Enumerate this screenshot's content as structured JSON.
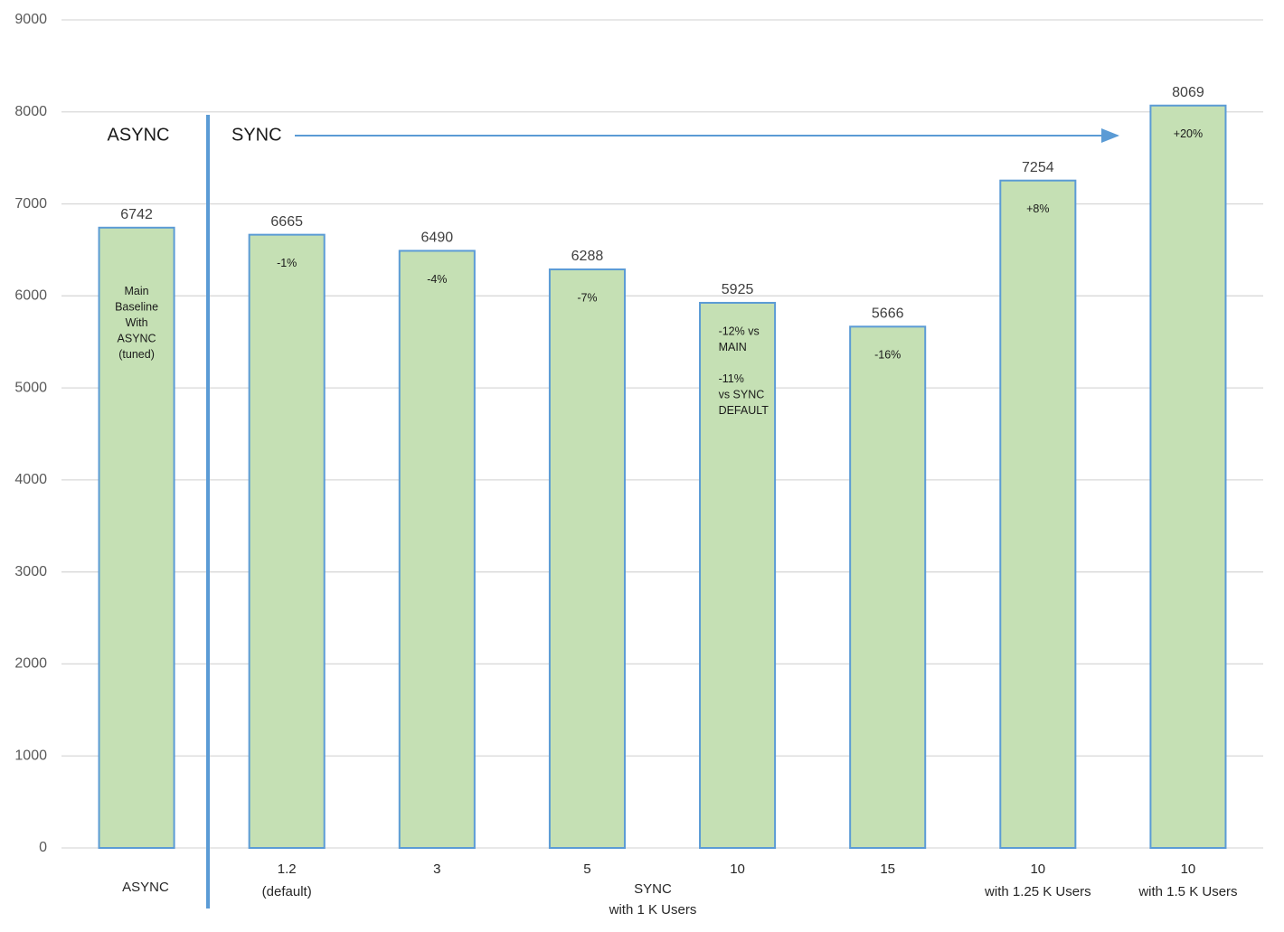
{
  "chart_data": {
    "type": "bar",
    "categories": [
      null,
      [
        "1.2",
        "(default)"
      ],
      [
        "3"
      ],
      [
        "5"
      ],
      [
        "10"
      ],
      [
        "15"
      ],
      [
        "10",
        "with 1.25 K Users"
      ],
      [
        "10",
        "with 1.5 K Users"
      ]
    ],
    "groups": [
      [
        "ASYNC"
      ],
      [
        "SYNC",
        "with 1 K Users"
      ]
    ],
    "values": [
      6742,
      6665,
      6490,
      6288,
      5925,
      5666,
      7254,
      8069
    ],
    "bar_notes": [
      [
        [
          "Main",
          "Baseline",
          "With",
          "ASYNC",
          "(tuned)"
        ]
      ],
      [
        [
          "-1%"
        ]
      ],
      [
        [
          "-4%"
        ]
      ],
      [
        [
          "-7%"
        ]
      ],
      [
        [
          "-12% vs",
          "MAIN"
        ],
        [
          "-11%",
          "vs SYNC",
          "DEFAULT"
        ]
      ],
      [
        [
          "-16%"
        ]
      ],
      [
        [
          "+8%"
        ]
      ],
      [
        [
          "+20%"
        ]
      ]
    ],
    "annotations": [
      "ASYNC",
      "SYNC"
    ],
    "color": "#c5e0b4",
    "edge_color": "#5b9bd5",
    "ylim": [
      0,
      9000
    ],
    "yticks": [
      0,
      1000,
      2000,
      3000,
      4000,
      5000,
      6000,
      7000,
      8000,
      9000
    ],
    "grid": true
  }
}
